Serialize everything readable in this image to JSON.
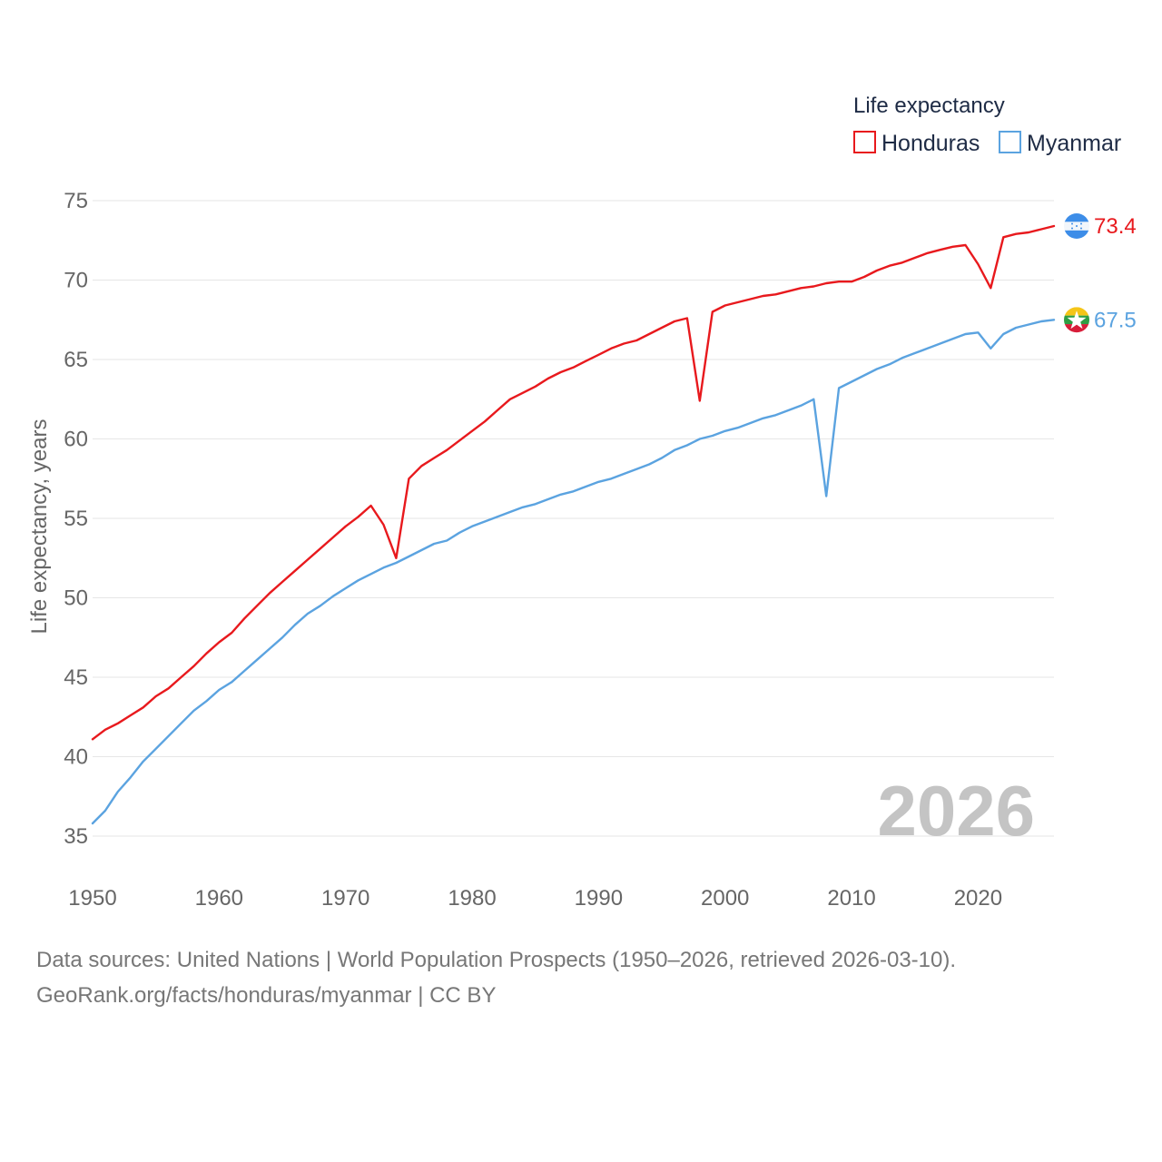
{
  "chart_data": {
    "type": "line",
    "title": "",
    "ylabel": "Life expectancy, years",
    "xlabel": "",
    "xlim": [
      1950,
      2026
    ],
    "ylim": [
      33,
      75
    ],
    "x_ticks": [
      "1950",
      "1960",
      "1970",
      "1980",
      "1990",
      "2000",
      "2010",
      "2020"
    ],
    "y_ticks": [
      "35",
      "40",
      "45",
      "50",
      "55",
      "60",
      "65",
      "70",
      "75"
    ],
    "legend_title": "Life expectancy",
    "legend_position": "top-right",
    "current_year": "2026",
    "years": [
      1950,
      1951,
      1952,
      1953,
      1954,
      1955,
      1956,
      1957,
      1958,
      1959,
      1960,
      1961,
      1962,
      1963,
      1964,
      1965,
      1966,
      1967,
      1968,
      1969,
      1970,
      1971,
      1972,
      1973,
      1974,
      1975,
      1976,
      1977,
      1978,
      1979,
      1980,
      1981,
      1982,
      1983,
      1984,
      1985,
      1986,
      1987,
      1988,
      1989,
      1990,
      1991,
      1992,
      1993,
      1994,
      1995,
      1996,
      1997,
      1998,
      1999,
      2000,
      2001,
      2002,
      2003,
      2004,
      2005,
      2006,
      2007,
      2008,
      2009,
      2010,
      2011,
      2012,
      2013,
      2014,
      2015,
      2016,
      2017,
      2018,
      2019,
      2020,
      2021,
      2022,
      2023,
      2024,
      2025,
      2026
    ],
    "series": [
      {
        "name": "Honduras",
        "color": "#e8191d",
        "end_label": "73.4",
        "flag_icon": "honduras-flag-icon",
        "values": [
          41.1,
          41.7,
          42.1,
          42.6,
          43.1,
          43.8,
          44.3,
          45.0,
          45.7,
          46.5,
          47.2,
          47.8,
          48.7,
          49.5,
          50.3,
          51.0,
          51.7,
          52.4,
          53.1,
          53.8,
          54.5,
          55.1,
          55.8,
          54.6,
          52.5,
          57.5,
          58.3,
          58.8,
          59.3,
          59.9,
          60.5,
          61.1,
          61.8,
          62.5,
          62.9,
          63.3,
          63.8,
          64.2,
          64.5,
          64.9,
          65.3,
          65.7,
          66.0,
          66.2,
          66.6,
          67.0,
          67.4,
          67.6,
          62.4,
          68.0,
          68.4,
          68.6,
          68.8,
          69.0,
          69.1,
          69.3,
          69.5,
          69.6,
          69.8,
          69.9,
          69.9,
          70.2,
          70.6,
          70.9,
          71.1,
          71.4,
          71.7,
          71.9,
          72.1,
          72.2,
          71.0,
          69.5,
          72.7,
          72.9,
          73.0,
          73.2,
          73.4
        ]
      },
      {
        "name": "Myanmar",
        "color": "#5ba3e0",
        "end_label": "67.5",
        "flag_icon": "myanmar-flag-icon",
        "values": [
          35.8,
          36.6,
          37.8,
          38.7,
          39.7,
          40.5,
          41.3,
          42.1,
          42.9,
          43.5,
          44.2,
          44.7,
          45.4,
          46.1,
          46.8,
          47.5,
          48.3,
          49.0,
          49.5,
          50.1,
          50.6,
          51.1,
          51.5,
          51.9,
          52.2,
          52.6,
          53.0,
          53.4,
          53.6,
          54.1,
          54.5,
          54.8,
          55.1,
          55.4,
          55.7,
          55.9,
          56.2,
          56.5,
          56.7,
          57.0,
          57.3,
          57.5,
          57.8,
          58.1,
          58.4,
          58.8,
          59.3,
          59.6,
          60.0,
          60.2,
          60.5,
          60.7,
          61.0,
          61.3,
          61.5,
          61.8,
          62.1,
          62.5,
          56.4,
          63.2,
          63.6,
          64.0,
          64.4,
          64.7,
          65.1,
          65.4,
          65.7,
          66.0,
          66.3,
          66.6,
          66.7,
          65.7,
          66.6,
          67.0,
          67.2,
          67.4,
          67.5
        ]
      }
    ]
  },
  "footer": {
    "sources": "Data sources: United Nations | World Population Prospects (1950–2026, retrieved 2026-03-10).",
    "attribution": "GeoRank.org/facts/honduras/myanmar | CC BY"
  }
}
